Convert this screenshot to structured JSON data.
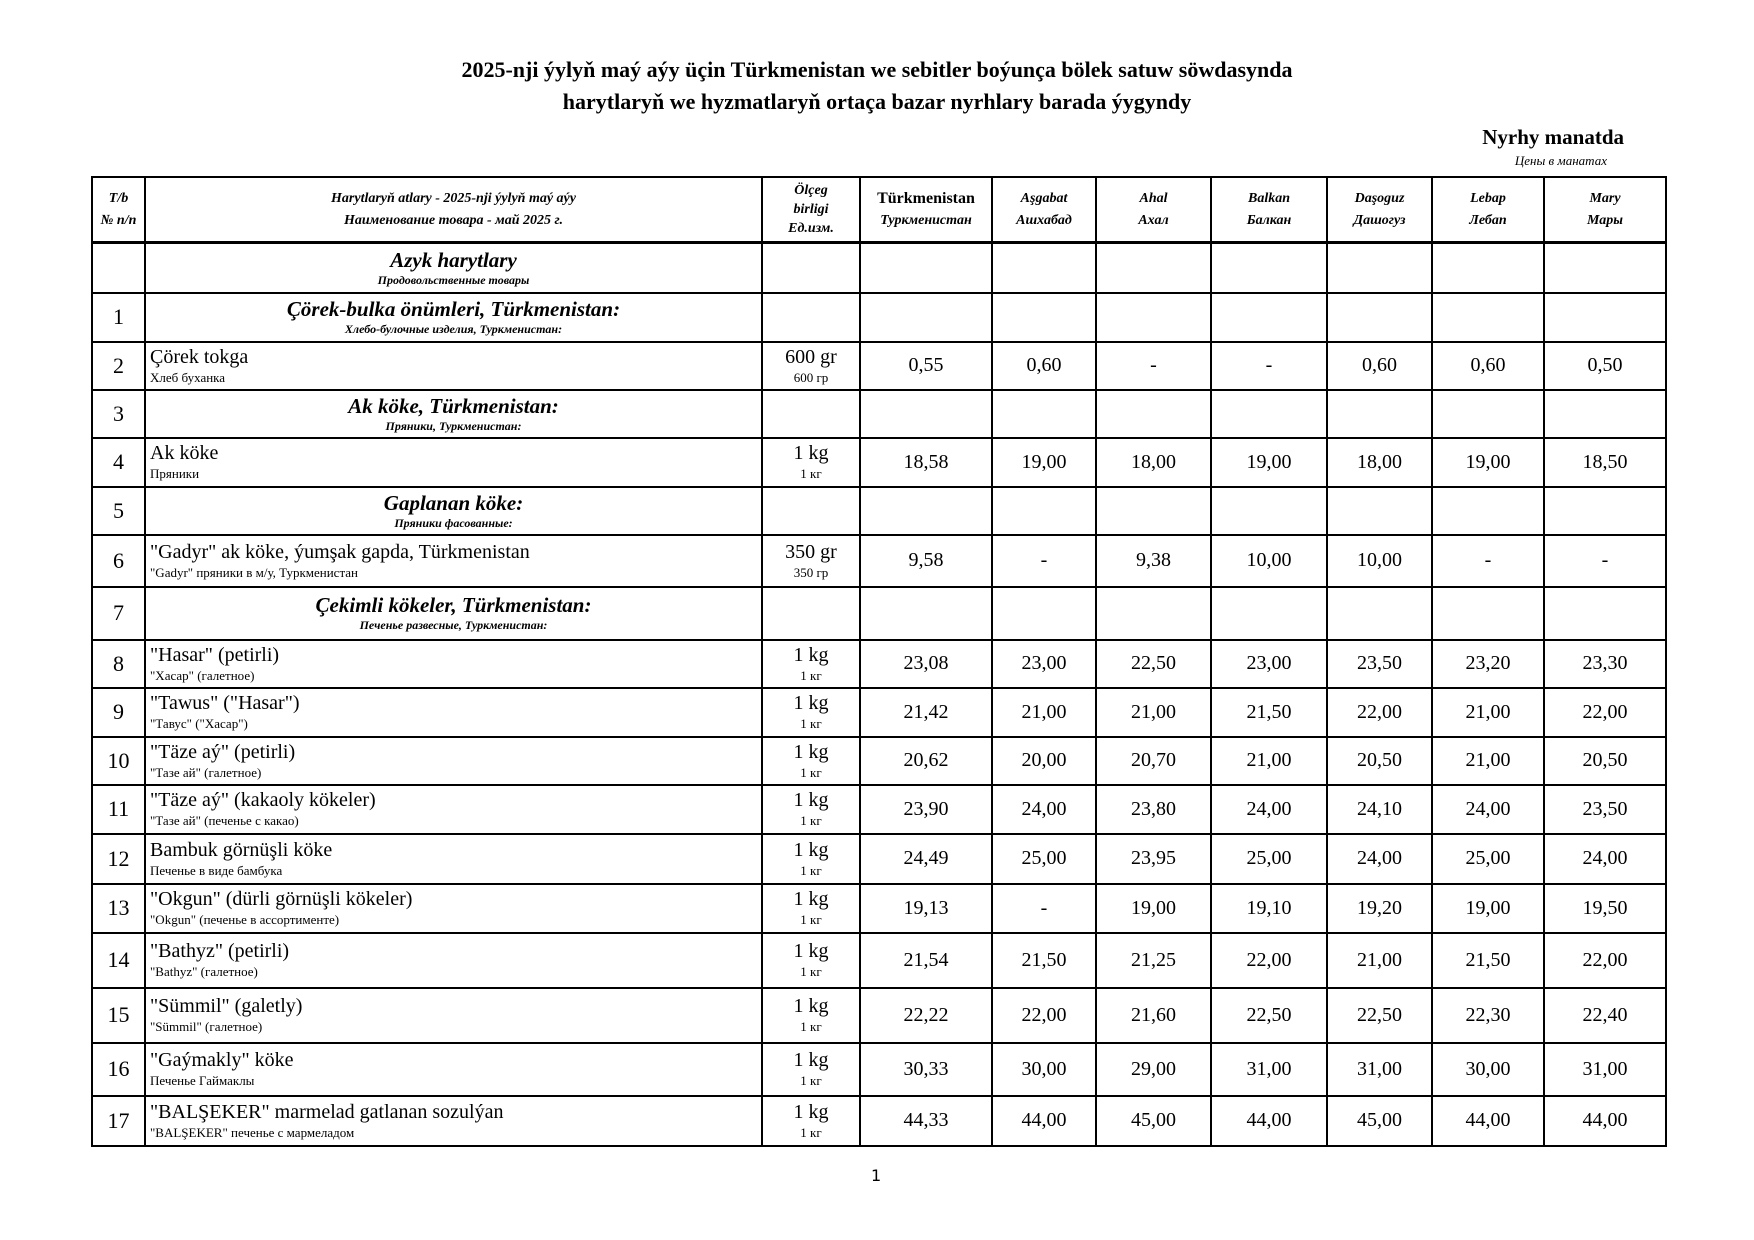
{
  "title": {
    "line1": "2025-nji ýylyň maý aýy üçin Türkmenistan we sebitler boýunça bölek satuw söwdasynda",
    "line2": "harytlaryň we hyzmatlaryň ortaça bazar nyrhlary barada ýygyndy",
    "unit": "Nyrhy manatda",
    "unit_ru": "Цены в манатах"
  },
  "header": {
    "no": [
      "T/b",
      "№ п/п"
    ],
    "name": [
      "Harytlaryň atlary - 2025-nji ýylyň maý aýy",
      "Наименование товара - май 2025 г."
    ],
    "unit": [
      "Ölçeg",
      "birligi",
      "Ед.изм."
    ],
    "regions": [
      {
        "tm": "Türkmenistan",
        "ru": "Туркменистан"
      },
      {
        "tm": "Aşgabat",
        "ru": "Ашхабад"
      },
      {
        "tm": "Ahal",
        "ru": "Ахал"
      },
      {
        "tm": "Balkan",
        "ru": "Балкан"
      },
      {
        "tm": "Daşoguz",
        "ru": "Дашогуз"
      },
      {
        "tm": "Lebap",
        "ru": "Лебап"
      },
      {
        "tm": "Mary",
        "ru": "Мары"
      }
    ]
  },
  "rows": [
    {
      "type": "section",
      "no": "",
      "name": "Azyk harytlary",
      "name_ru": "Продовольственные товары"
    },
    {
      "type": "section",
      "no": "1",
      "name": "Çörek-bulka önümleri, Türkmenistan:",
      "name_ru": "Хлебо-булочные изделия, Туркменистан:"
    },
    {
      "type": "item",
      "no": "2",
      "name": "Çörek tokga",
      "name_ru": "Хлеб буханка",
      "unit": "600 gr",
      "unit_ru": "600 гр",
      "values": [
        "0,55",
        "0,60",
        "-",
        "-",
        "0,60",
        "0,60",
        "0,50"
      ]
    },
    {
      "type": "section",
      "no": "3",
      "name": "Ak köke, Türkmenistan:",
      "name_ru": "Пряники, Туркменистан:"
    },
    {
      "type": "item",
      "no": "4",
      "name": "Ak köke",
      "name_ru": "Пряники",
      "unit": "1 kg",
      "unit_ru": "1 кг",
      "values": [
        "18,58",
        "19,00",
        "18,00",
        "19,00",
        "18,00",
        "19,00",
        "18,50"
      ]
    },
    {
      "type": "section",
      "no": "5",
      "name": "Gaplanan köke:",
      "name_ru": "Пряники фасованные:"
    },
    {
      "type": "item",
      "no": "6",
      "name": "\"Gadyr\" ak köke, ýumşak gapda, Türkmenistan",
      "name_ru": "\"Gadyr\" пряники в м/у, Туркменистан",
      "unit": "350 gr",
      "unit_ru": "350 гр",
      "values": [
        "9,58",
        "-",
        "9,38",
        "10,00",
        "10,00",
        "-",
        "-"
      ]
    },
    {
      "type": "section",
      "no": "7",
      "name": "Çekimli kökeler, Türkmenistan:",
      "name_ru": "Печенье развесные, Туркменистан:"
    },
    {
      "type": "item",
      "no": "8",
      "name": "\"Hasar\" (petirli)",
      "name_ru": "\"Хасар\" (галетное)",
      "unit": "1 kg",
      "unit_ru": "1 кг",
      "values": [
        "23,08",
        "23,00",
        "22,50",
        "23,00",
        "23,50",
        "23,20",
        "23,30"
      ]
    },
    {
      "type": "item",
      "no": "9",
      "name": "\"Tawus\" (\"Hasar\")",
      "name_ru": "\"Тавус\" (\"Хасар\")",
      "unit": "1 kg",
      "unit_ru": "1 кг",
      "values": [
        "21,42",
        "21,00",
        "21,00",
        "21,50",
        "22,00",
        "21,00",
        "22,00"
      ]
    },
    {
      "type": "item",
      "no": "10",
      "name": "\"Täze aý\" (petirli)",
      "name_ru": "\"Тазе ай\" (галетное)",
      "unit": "1 kg",
      "unit_ru": "1 кг",
      "values": [
        "20,62",
        "20,00",
        "20,70",
        "21,00",
        "20,50",
        "21,00",
        "20,50"
      ]
    },
    {
      "type": "item",
      "no": "11",
      "name": "\"Täze aý\" (kakaoly kökeler)",
      "name_ru": "\"Тазе ай\" (печенье с какао)",
      "unit": "1 kg",
      "unit_ru": "1 кг",
      "values": [
        "23,90",
        "24,00",
        "23,80",
        "24,00",
        "24,10",
        "24,00",
        "23,50"
      ]
    },
    {
      "type": "item",
      "no": "12",
      "name": "Bambuk görnüşli köke",
      "name_ru": "Печенье в виде бамбука",
      "unit": "1 kg",
      "unit_ru": "1 кг",
      "values": [
        "24,49",
        "25,00",
        "23,95",
        "25,00",
        "24,00",
        "25,00",
        "24,00"
      ]
    },
    {
      "type": "item",
      "no": "13",
      "name": "\"Okgun\" (dürli görnüşli kökeler)",
      "name_ru": "\"Okgun\" (печенье в ассортименте)",
      "unit": "1 kg",
      "unit_ru": "1 кг",
      "values": [
        "19,13",
        "-",
        "19,00",
        "19,10",
        "19,20",
        "19,00",
        "19,50"
      ]
    },
    {
      "type": "item",
      "no": "14",
      "name": "\"Bathyz\" (petirli)",
      "name_ru": "\"Bathyz\" (галетное)",
      "unit": "1 kg",
      "unit_ru": "1 кг",
      "values": [
        "21,54",
        "21,50",
        "21,25",
        "22,00",
        "21,00",
        "21,50",
        "22,00"
      ]
    },
    {
      "type": "item",
      "no": "15",
      "name": "\"Sümmil\" (galetly)",
      "name_ru": "\"Sümmil\" (галетное)",
      "unit": "1 kg",
      "unit_ru": "1 кг",
      "values": [
        "22,22",
        "22,00",
        "21,60",
        "22,50",
        "22,50",
        "22,30",
        "22,40"
      ]
    },
    {
      "type": "item",
      "no": "16",
      "name": "\"Gaýmakly\" köke",
      "name_ru": "Печенье Гаймаклы",
      "unit": "1 kg",
      "unit_ru": "1 кг",
      "values": [
        "30,33",
        "30,00",
        "29,00",
        "31,00",
        "31,00",
        "30,00",
        "31,00"
      ]
    },
    {
      "type": "item",
      "no": "17",
      "name": "\"BALŞEKER\" marmelad gatlanan sozulýan",
      "name_ru": "\"BALŞEKER\" печенье с мармеладом",
      "unit": "1 kg",
      "unit_ru": "1 кг",
      "values": [
        "44,33",
        "44,00",
        "45,00",
        "44,00",
        "45,00",
        "44,00",
        "44,00"
      ]
    }
  ],
  "page_number": "1"
}
